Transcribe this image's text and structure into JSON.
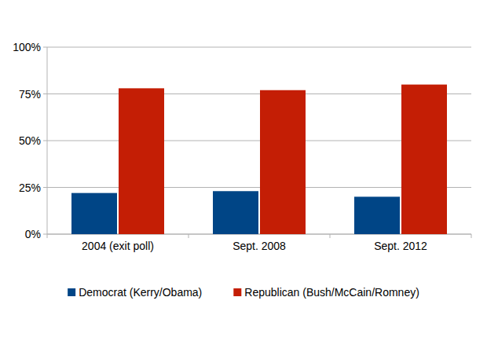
{
  "chart_data": {
    "type": "bar",
    "categories": [
      "2004 (exit poll)",
      "Sept. 2008",
      "Sept. 2012"
    ],
    "series": [
      {
        "name": "Democrat (Kerry/Obama)",
        "color": "#004586",
        "values": [
          22,
          23,
          20
        ]
      },
      {
        "name": "Republican (Bush/McCain/Romney)",
        "color": "#c41e05",
        "values": [
          78,
          77,
          80
        ]
      }
    ],
    "ylim": [
      0,
      100
    ],
    "yticks": [
      {
        "value": 0,
        "label": "0%"
      },
      {
        "value": 25,
        "label": "25%"
      },
      {
        "value": 50,
        "label": "50%"
      },
      {
        "value": 75,
        "label": "75%"
      },
      {
        "value": 100,
        "label": "100%"
      }
    ],
    "grid": true,
    "legend": "bottom"
  }
}
